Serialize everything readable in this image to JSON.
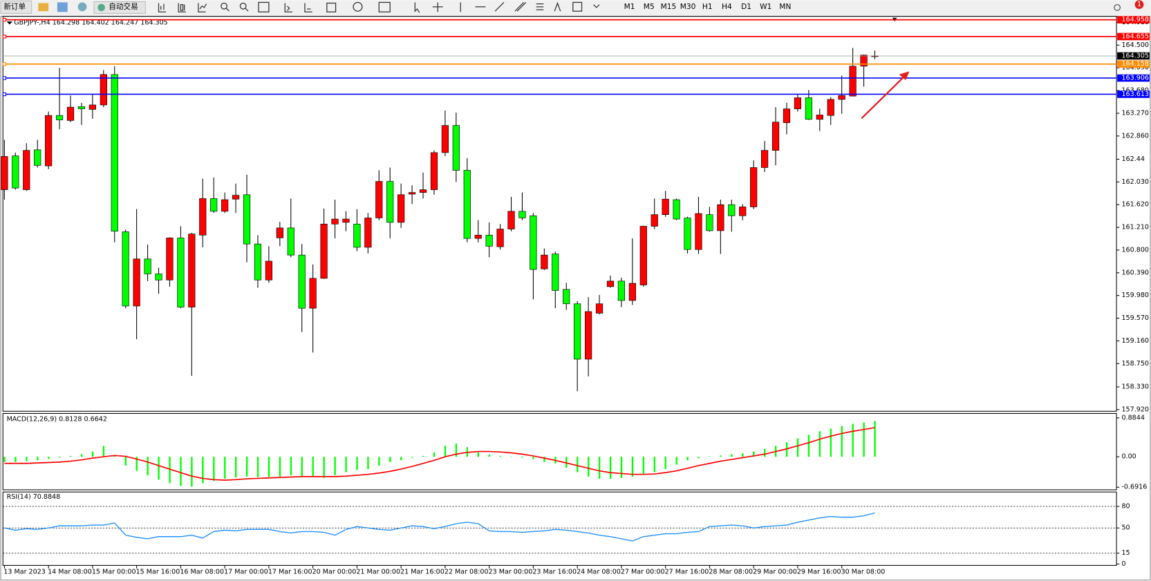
{
  "toolbar": {
    "new_order": "新订单",
    "auto_trading": "自动交易",
    "timeframes": [
      "M1",
      "M5",
      "M15",
      "M30",
      "H1",
      "H4",
      "D1",
      "W1",
      "MN"
    ],
    "notification_count": 1
  },
  "chart_data": [
    {
      "type": "candlestick",
      "title": "GBPJPY-,H4  164.298 164.402 164.247 164.305",
      "up_color": "#ff0000",
      "down_color": "#00ff00",
      "categories": [
        "13 Mar 2023",
        null,
        null,
        null,
        "14 Mar 08:00",
        null,
        null,
        null,
        "15 Mar 00:00",
        null,
        null,
        null,
        "15 Mar 16:00",
        null,
        null,
        null,
        "16 Mar 08:00",
        null,
        null,
        null,
        "17 Mar 00:00",
        null,
        null,
        null,
        "17 Mar 16:00",
        null,
        null,
        null,
        "20 Mar 00:00",
        null,
        null,
        null,
        "21 Mar 00:00",
        null,
        null,
        null,
        "21 Mar 16:00",
        null,
        null,
        null,
        "22 Mar 08:00",
        null,
        null,
        null,
        "23 Mar 00:00",
        null,
        null,
        null,
        "23 Mar 16:00",
        null,
        null,
        null,
        "24 Mar 08:00",
        null,
        null,
        null,
        "27 Mar 00:00",
        null,
        null,
        null,
        "27 Mar 16:00",
        null,
        null,
        null,
        "28 Mar 08:00",
        null,
        null,
        null,
        "29 Mar 00:00",
        null,
        null,
        null,
        "29 Mar 16:00",
        null,
        null,
        null,
        "30 Mar 08:00",
        null,
        null,
        null
      ],
      "open": [
        161.89,
        162.5,
        161.89,
        162.61,
        162.32,
        163.23,
        163.14,
        163.39,
        163.34,
        163.42,
        163.97,
        161.13,
        159.79,
        160.64,
        160.37,
        160.26,
        161.02,
        159.77,
        161.07,
        161.73,
        161.5,
        161.72,
        161.8,
        160.91,
        160.26,
        161.02,
        161.2,
        160.71,
        159.75,
        160.29,
        161.27,
        161.3,
        161.27,
        160.85,
        161.38,
        162.04,
        161.3,
        161.81,
        161.84,
        161.89,
        162.56,
        163.05,
        162.24,
        161.01,
        161.07,
        160.86,
        161.18,
        161.5,
        161.42,
        160.46,
        160.73,
        160.09,
        159.83,
        158.83,
        159.66,
        160.14,
        160.24,
        159.89,
        160.17,
        161.23,
        161.44,
        161.71,
        161.38,
        160.81,
        161.44,
        161.15,
        161.62,
        161.42,
        161.58,
        162.29,
        162.6,
        163.1,
        163.35,
        163.55,
        163.16,
        163.23,
        163.52,
        163.58,
        164.12,
        164.298
      ],
      "high": [
        162.79,
        162.56,
        162.73,
        162.79,
        163.3,
        164.09,
        163.59,
        163.46,
        163.62,
        164.05,
        164.12,
        161.17,
        161.54,
        160.9,
        160.48,
        161.03,
        161.23,
        161.11,
        162.09,
        162.11,
        161.84,
        162.0,
        162.16,
        161.07,
        160.87,
        161.31,
        161.73,
        160.91,
        160.54,
        161.55,
        161.71,
        161.5,
        161.54,
        161.47,
        162.24,
        162.29,
        162.0,
        161.97,
        162.2,
        162.6,
        163.32,
        163.28,
        162.46,
        161.34,
        161.3,
        161.27,
        161.76,
        161.84,
        161.47,
        160.83,
        160.77,
        160.21,
        159.88,
        159.95,
        159.99,
        160.34,
        160.3,
        161.01,
        161.24,
        161.73,
        161.87,
        161.73,
        161.4,
        161.76,
        161.58,
        161.71,
        161.71,
        161.63,
        162.42,
        162.77,
        163.38,
        163.46,
        163.62,
        163.69,
        163.35,
        163.56,
        163.95,
        164.45,
        164.33,
        164.402
      ],
      "low": [
        161.71,
        161.89,
        161.87,
        162.29,
        162.26,
        162.98,
        163.11,
        163.06,
        163.17,
        163.38,
        160.94,
        159.75,
        159.19,
        160.24,
        160.01,
        160.14,
        159.75,
        158.53,
        160.85,
        161.47,
        161.47,
        161.47,
        160.58,
        160.12,
        160.21,
        160.87,
        160.67,
        159.32,
        158.95,
        160.28,
        161.01,
        161.14,
        160.78,
        160.74,
        161.34,
        161.01,
        161.2,
        161.63,
        161.73,
        161.8,
        162.5,
        162.03,
        160.94,
        160.94,
        160.67,
        160.81,
        161.14,
        161.34,
        159.91,
        160.44,
        159.75,
        159.72,
        158.25,
        158.52,
        159.64,
        160.12,
        159.77,
        159.81,
        160.14,
        161.18,
        161.4,
        161.34,
        160.74,
        160.73,
        161.13,
        160.73,
        161.13,
        161.34,
        161.54,
        162.21,
        162.33,
        162.89,
        163.3,
        163.15,
        162.95,
        163.06,
        163.26,
        163.58,
        163.75,
        164.247
      ],
      "close": [
        162.49,
        161.92,
        162.6,
        162.33,
        163.23,
        163.15,
        163.38,
        163.35,
        163.42,
        163.97,
        161.14,
        159.79,
        160.64,
        160.37,
        160.26,
        161.02,
        159.77,
        161.09,
        161.73,
        161.5,
        161.71,
        161.79,
        160.91,
        160.26,
        160.6,
        161.2,
        160.71,
        159.75,
        160.29,
        161.27,
        161.36,
        161.36,
        160.85,
        161.38,
        162.04,
        161.3,
        161.8,
        161.84,
        161.89,
        162.56,
        163.05,
        162.24,
        161.01,
        161.07,
        160.87,
        161.18,
        161.5,
        161.38,
        160.45,
        160.71,
        160.07,
        159.83,
        158.83,
        159.69,
        159.83,
        160.24,
        159.89,
        160.2,
        161.23,
        161.44,
        161.72,
        161.36,
        160.81,
        161.46,
        161.15,
        161.62,
        161.42,
        161.58,
        162.29,
        162.6,
        163.11,
        163.35,
        163.55,
        163.16,
        163.24,
        163.52,
        163.59,
        164.12,
        164.32,
        164.305
      ],
      "ylim": [
        157.89,
        165.02
      ],
      "yticks": [
        {
          "value": 164.91,
          "label": "164.910"
        },
        {
          "value": 164.5,
          "label": "164.500"
        },
        {
          "value": 164.09,
          "label": "164.090"
        },
        {
          "value": 163.68,
          "label": "163.680"
        },
        {
          "value": 163.27,
          "label": "163.270"
        },
        {
          "value": 162.86,
          "label": "162.860"
        },
        162.44,
        {
          "value": 162.03,
          "label": "162.030"
        },
        {
          "value": 161.62,
          "label": "161.620"
        },
        {
          "value": 161.21,
          "label": "161.210"
        },
        {
          "value": 160.8,
          "label": "160.800"
        },
        {
          "value": 160.39,
          "label": "160.390"
        },
        {
          "value": 159.98,
          "label": "159.980"
        },
        {
          "value": 159.57,
          "label": "159.570"
        },
        {
          "value": 159.16,
          "label": "159.160"
        },
        {
          "value": 158.75,
          "label": "158.750"
        },
        {
          "value": 158.33,
          "label": "158.330"
        },
        {
          "value": 157.92,
          "label": "157.920"
        }
      ],
      "hlines": [
        {
          "value": 164.958,
          "color": "#ff0000"
        },
        {
          "value": 164.655,
          "color": "#ff0000"
        },
        {
          "value": 164.158,
          "color": "#ff8c00"
        },
        {
          "value": 163.906,
          "color": "#0000ff"
        },
        {
          "value": 163.613,
          "color": "#0000ff"
        }
      ],
      "grid": false
    },
    {
      "type": "macd",
      "title": "MACD(12,26,9) 0.8128 0.6642",
      "ylim": [
        -0.75,
        0.985
      ],
      "yticks": [
        0.8844,
        {
          "value": 0,
          "label": "0.00"
        },
        -0.6916
      ],
      "series": [
        {
          "type": "bar",
          "color": "#00ff00",
          "values": [
            -0.12,
            -0.12,
            -0.1,
            -0.08,
            -0.05,
            -0.02,
            0.02,
            0.06,
            0.12,
            0.25,
            0.04,
            -0.2,
            -0.32,
            -0.42,
            -0.52,
            -0.6,
            -0.66,
            -0.68,
            -0.6,
            -0.55,
            -0.5,
            -0.47,
            -0.45,
            -0.46,
            -0.46,
            -0.45,
            -0.42,
            -0.44,
            -0.46,
            -0.48,
            -0.42,
            -0.35,
            -0.3,
            -0.28,
            -0.2,
            -0.12,
            -0.08,
            -0.02,
            0.02,
            0.1,
            0.25,
            0.3,
            0.22,
            0.1,
            0.05,
            0.02,
            0,
            -0.02,
            -0.05,
            -0.12,
            -0.15,
            -0.25,
            -0.35,
            -0.45,
            -0.5,
            -0.5,
            -0.48,
            -0.45,
            -0.4,
            -0.35,
            -0.28,
            -0.18,
            -0.08,
            -0.03,
            0.01,
            0.03,
            0.06,
            0.08,
            0.12,
            0.18,
            0.25,
            0.33,
            0.42,
            0.5,
            0.58,
            0.64,
            0.7,
            0.75,
            0.78,
            0.8128
          ]
        },
        {
          "type": "line",
          "color": "#ff0000",
          "values": [
            -0.15,
            -0.15,
            -0.15,
            -0.14,
            -0.13,
            -0.12,
            -0.1,
            -0.07,
            -0.03,
            0.0,
            0.03,
            0.01,
            -0.05,
            -0.12,
            -0.2,
            -0.28,
            -0.36,
            -0.44,
            -0.49,
            -0.52,
            -0.53,
            -0.52,
            -0.5,
            -0.49,
            -0.48,
            -0.47,
            -0.46,
            -0.45,
            -0.45,
            -0.45,
            -0.45,
            -0.44,
            -0.42,
            -0.4,
            -0.37,
            -0.33,
            -0.28,
            -0.22,
            -0.15,
            -0.08,
            0.0,
            0.06,
            0.1,
            0.12,
            0.12,
            0.11,
            0.09,
            0.06,
            0.02,
            -0.03,
            -0.08,
            -0.14,
            -0.2,
            -0.26,
            -0.32,
            -0.36,
            -0.38,
            -0.4,
            -0.4,
            -0.39,
            -0.36,
            -0.32,
            -0.26,
            -0.2,
            -0.15,
            -0.1,
            -0.06,
            -0.02,
            0.02,
            0.06,
            0.12,
            0.18,
            0.25,
            0.32,
            0.4,
            0.47,
            0.53,
            0.58,
            0.62,
            0.6642
          ]
        }
      ]
    },
    {
      "type": "line",
      "title": "RSI(14) 70.8848",
      "color": "#1e90ff",
      "ylim": [
        -2,
        100
      ],
      "yticks": [
        80,
        50,
        15,
        0
      ],
      "levels": [
        80,
        50,
        15
      ],
      "values": [
        50,
        47,
        49,
        48,
        50,
        53,
        53,
        53,
        54,
        54,
        57,
        40,
        37,
        35,
        38,
        38,
        38,
        40,
        36,
        45,
        47,
        46,
        48,
        48,
        48,
        45,
        43,
        45,
        45,
        44,
        40,
        48,
        52,
        50,
        48,
        47,
        50,
        53,
        52,
        49,
        52,
        56,
        58,
        56,
        46,
        45,
        45,
        44,
        45,
        46,
        48,
        47,
        45,
        43,
        40,
        38,
        35,
        32,
        38,
        40,
        42,
        42,
        44,
        45,
        52,
        53,
        54,
        53,
        50,
        52,
        53,
        54,
        58,
        61,
        64,
        66,
        65,
        65,
        67,
        70.8848
      ]
    }
  ]
}
